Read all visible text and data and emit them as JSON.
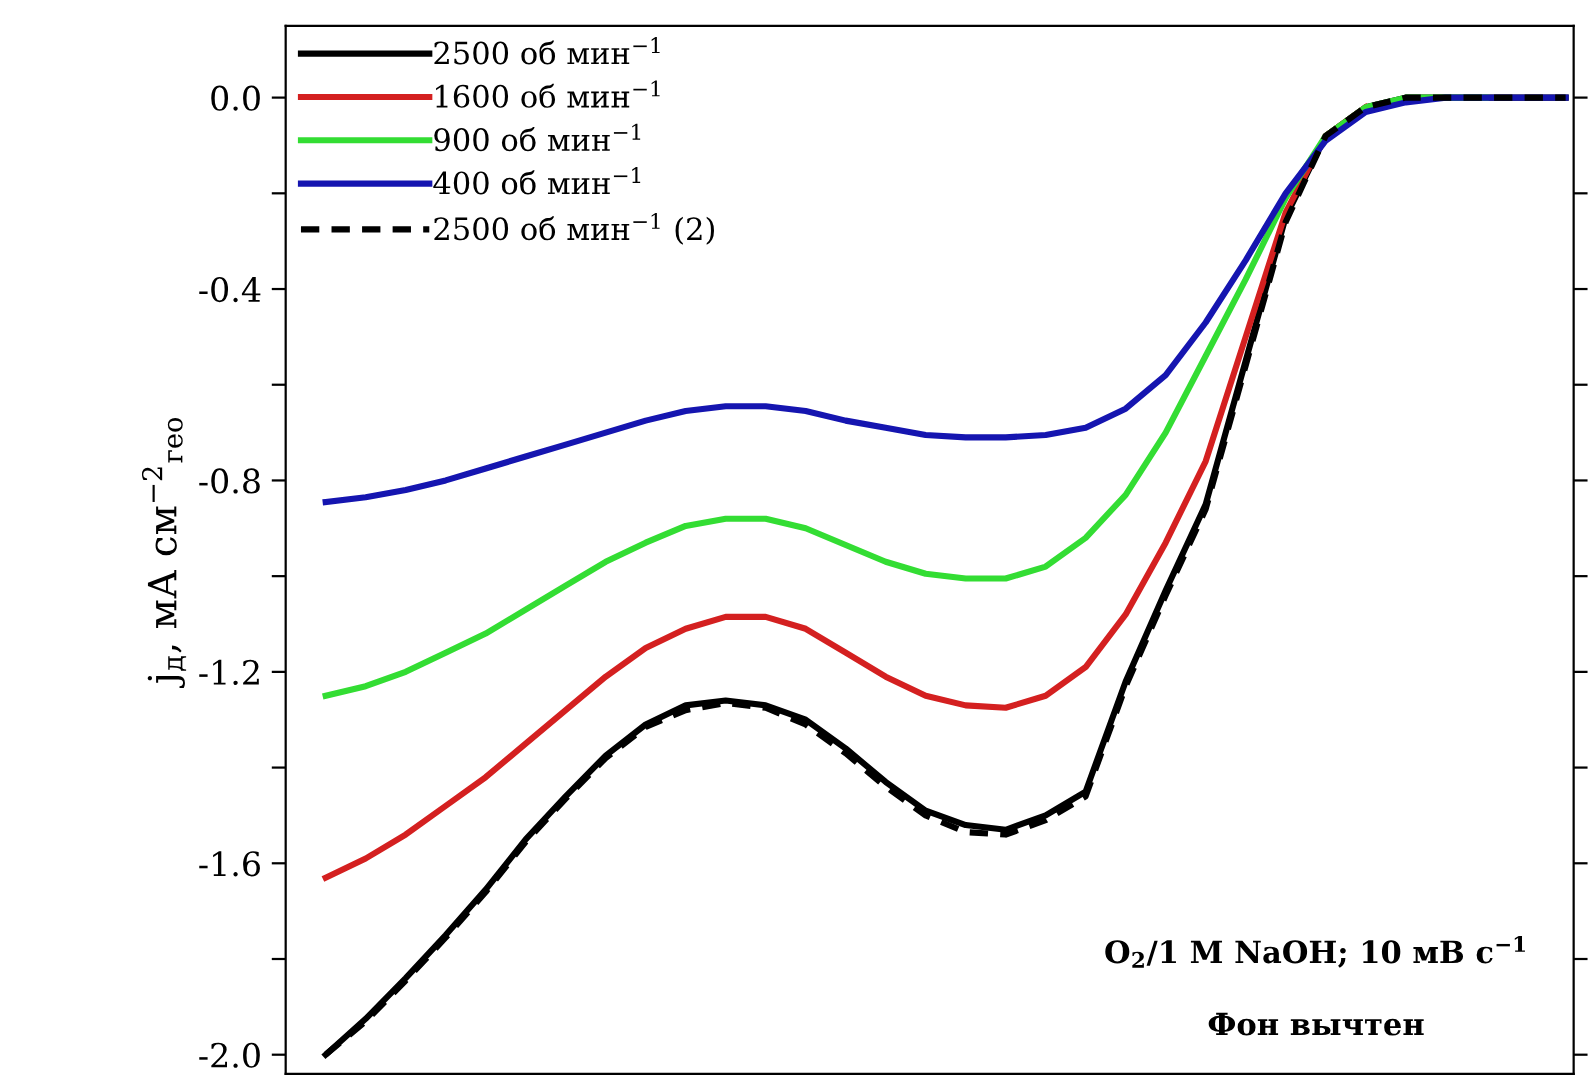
{
  "chart_data": {
    "type": "line",
    "ylabel": "j$_{д}$, мА см$^{−2}$$_{гео}$",
    "categories": [
      null,
      null,
      null,
      null,
      null,
      null,
      null,
      null,
      null,
      null,
      null,
      null,
      null,
      null,
      null,
      null,
      null,
      null,
      null,
      null,
      null,
      null,
      null,
      null,
      null,
      null,
      null,
      null,
      null,
      null,
      null,
      null
    ],
    "series": [
      {
        "name": "2500 об мин$^{−1}$",
        "color": "#000000",
        "values": [
          -2.0,
          -1.925,
          -1.84,
          -1.75,
          -1.655,
          -1.55,
          -1.46,
          -1.375,
          -1.31,
          -1.27,
          -1.26,
          -1.27,
          -1.3,
          -1.36,
          -1.43,
          -1.49,
          -1.52,
          -1.53,
          -1.5,
          -1.45,
          -1.22,
          -1.03,
          -0.85,
          -0.55,
          -0.25,
          -0.08,
          -0.02,
          0.0,
          0.0,
          0.0,
          0.0,
          0.0
        ]
      },
      {
        "name": "1600 об мин$^{−1}$",
        "color": "#d42020",
        "values": [
          -1.63,
          -1.59,
          -1.54,
          -1.48,
          -1.42,
          -1.35,
          -1.28,
          -1.21,
          -1.15,
          -1.11,
          -1.085,
          -1.085,
          -1.11,
          -1.16,
          -1.21,
          -1.25,
          -1.27,
          -1.275,
          -1.25,
          -1.19,
          -1.08,
          -0.93,
          -0.76,
          -0.5,
          -0.24,
          -0.08,
          -0.02,
          null,
          null,
          null,
          null,
          null
        ]
      },
      {
        "name": "900 об мин$^{−1}$",
        "color": "#33dd33",
        "values": [
          -1.25,
          -1.23,
          -1.2,
          -1.16,
          -1.12,
          -1.07,
          -1.02,
          -0.97,
          -0.93,
          -0.895,
          -0.88,
          -0.88,
          -0.9,
          -0.935,
          -0.97,
          -0.995,
          -1.005,
          -1.005,
          -0.98,
          -0.92,
          -0.83,
          -0.7,
          -0.54,
          -0.38,
          -0.21,
          -0.08,
          -0.02,
          0.0,
          0.0,
          0.0,
          null,
          null
        ]
      },
      {
        "name": "400 об мин$^{−1}$",
        "color": "#1515b0",
        "values": [
          -0.845,
          -0.835,
          -0.82,
          -0.8,
          -0.775,
          -0.75,
          -0.725,
          -0.7,
          -0.675,
          -0.655,
          -0.645,
          -0.645,
          -0.655,
          -0.675,
          -0.69,
          -0.705,
          -0.71,
          -0.71,
          -0.705,
          -0.69,
          -0.65,
          -0.58,
          -0.47,
          -0.34,
          -0.2,
          -0.09,
          -0.03,
          -0.01,
          0.0,
          0.0,
          0.0,
          0.0
        ]
      },
      {
        "name": "2500 об мин$^{−1}$ (2)",
        "color": "#000000",
        "line_style": "dashed",
        "values": [
          -2.0,
          -1.93,
          -1.845,
          -1.755,
          -1.66,
          -1.555,
          -1.465,
          -1.38,
          -1.315,
          -1.28,
          -1.265,
          -1.275,
          -1.31,
          -1.37,
          -1.44,
          -1.5,
          -1.535,
          -1.54,
          -1.51,
          -1.46,
          -1.23,
          -1.04,
          -0.86,
          -0.56,
          -0.26,
          -0.08,
          -0.02,
          0.0,
          0.0,
          0.0,
          0.0,
          0.0
        ]
      }
    ],
    "ylim": [
      -2.04,
      0.15
    ],
    "yticks": [
      {
        "value": -2.0,
        "label": "-2.0"
      },
      {
        "value": -1.8,
        "label": null
      },
      -1.6,
      {
        "value": -1.4,
        "label": null
      },
      -1.2,
      {
        "value": -1.0,
        "label": null
      },
      -0.8,
      {
        "value": -0.6,
        "label": null
      },
      -0.4,
      {
        "value": -0.2,
        "label": null
      },
      {
        "value": 0.0,
        "label": "0.0"
      }
    ],
    "tick_labels": "y",
    "legend": "top left",
    "grid": false,
    "annotations": [
      "O$_{2}$/1 M NaOH; 10 мВ с$^{−1}$",
      "Фон вычтен"
    ]
  }
}
